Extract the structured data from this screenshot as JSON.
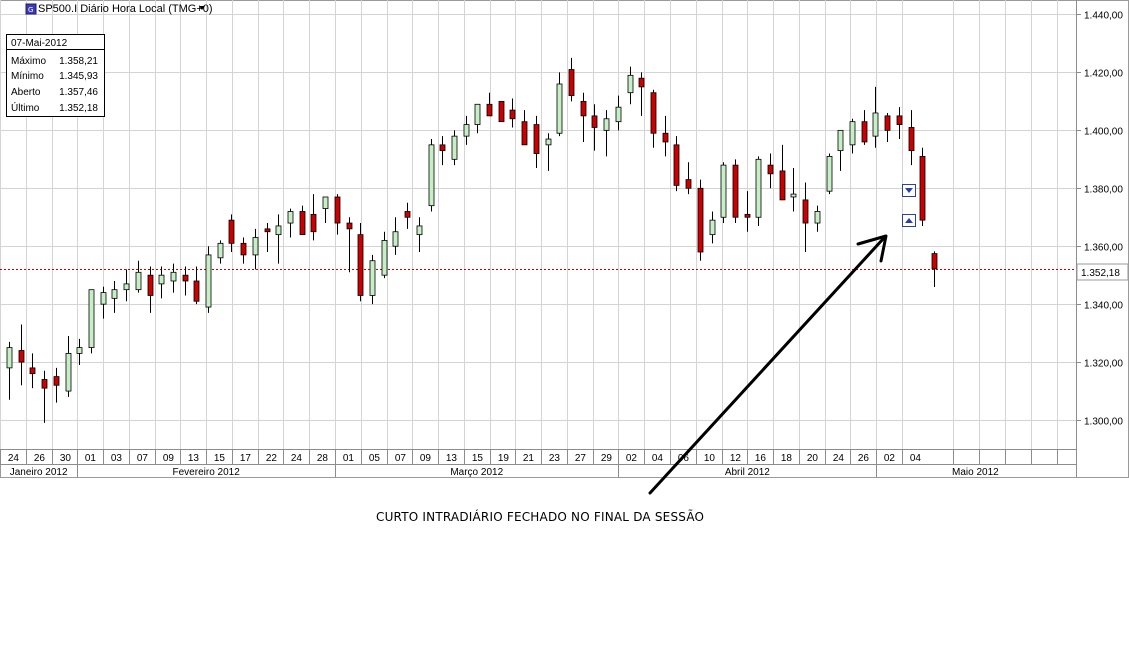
{
  "header": {
    "symbol_icon": "chart-symbol-icon",
    "title": "SP500.I Diário Hora Local (TMG+0)",
    "dropdown_icon": "triangle-down-icon"
  },
  "info_box": {
    "date": "07-Mai-2012",
    "rows": [
      {
        "label": "Máximo",
        "value": "1.358,21"
      },
      {
        "label": "Mínimo",
        "value": "1.345,93"
      },
      {
        "label": "Aberto",
        "value": "1.357,46"
      },
      {
        "label": "Último",
        "value": "1.352,18"
      }
    ]
  },
  "last_price_label": "1.352,18",
  "annotation_text": "CURTO INTRADIÁRIO FECHADO NO FINAL DA SESSÃO",
  "colors": {
    "up_body": "#c6efc6",
    "down_body": "#cc0000",
    "grid": "#d4d4d4",
    "last_line": "#cc0000",
    "marker": "#2a3fa8"
  },
  "chart_data": {
    "type": "candlestick",
    "ylim": [
      1290,
      1445
    ],
    "yticks": [
      {
        "value": 1300,
        "label": "1.300,00"
      },
      {
        "value": 1320,
        "label": "1.320,00"
      },
      {
        "value": 1340,
        "label": "1.340,00"
      },
      {
        "value": 1360,
        "label": "1.360,00"
      },
      {
        "value": 1380,
        "label": "1.380,00"
      },
      {
        "value": 1400,
        "label": "1.400,00"
      },
      {
        "value": 1420,
        "label": "1.420,00"
      },
      {
        "value": 1440,
        "label": "1.440,00"
      }
    ],
    "last_value": 1352.18,
    "day_labels": [
      "24",
      "26",
      "30",
      "01",
      "03",
      "07",
      "09",
      "13",
      "15",
      "17",
      "22",
      "24",
      "28",
      "01",
      "05",
      "07",
      "09",
      "13",
      "15",
      "19",
      "21",
      "23",
      "27",
      "29",
      "02",
      "04",
      "06",
      "10",
      "12",
      "16",
      "18",
      "20",
      "24",
      "26",
      "02",
      "04"
    ],
    "month_labels": [
      "Janeiro 2012",
      "Fevereiro 2012",
      "Março 2012",
      "Abril 2012",
      "Maio 2012"
    ],
    "candles": [
      {
        "o": 1318,
        "h": 1327,
        "l": 1307,
        "c": 1325
      },
      {
        "o": 1324,
        "h": 1333,
        "l": 1312,
        "c": 1320
      },
      {
        "o": 1318,
        "h": 1323,
        "l": 1311,
        "c": 1316
      },
      {
        "o": 1314,
        "h": 1317,
        "l": 1299,
        "c": 1311
      },
      {
        "o": 1315,
        "h": 1318,
        "l": 1306,
        "c": 1312
      },
      {
        "o": 1310,
        "h": 1329,
        "l": 1308,
        "c": 1323
      },
      {
        "o": 1323,
        "h": 1328,
        "l": 1319,
        "c": 1325
      },
      {
        "o": 1325,
        "h": 1345,
        "l": 1323,
        "c": 1345
      },
      {
        "o": 1340,
        "h": 1346,
        "l": 1335,
        "c": 1344
      },
      {
        "o": 1342,
        "h": 1348,
        "l": 1337,
        "c": 1345
      },
      {
        "o": 1345,
        "h": 1352,
        "l": 1341,
        "c": 1347
      },
      {
        "o": 1345,
        "h": 1355,
        "l": 1344,
        "c": 1351
      },
      {
        "o": 1350,
        "h": 1353,
        "l": 1337,
        "c": 1343
      },
      {
        "o": 1347,
        "h": 1353,
        "l": 1342,
        "c": 1350
      },
      {
        "o": 1348,
        "h": 1354,
        "l": 1344,
        "c": 1351
      },
      {
        "o": 1350,
        "h": 1353,
        "l": 1343,
        "c": 1348
      },
      {
        "o": 1348,
        "h": 1353,
        "l": 1340,
        "c": 1341
      },
      {
        "o": 1339,
        "h": 1360,
        "l": 1337,
        "c": 1357
      },
      {
        "o": 1356,
        "h": 1362,
        "l": 1354,
        "c": 1361
      },
      {
        "o": 1369,
        "h": 1371,
        "l": 1358,
        "c": 1361
      },
      {
        "o": 1361,
        "h": 1363,
        "l": 1354,
        "c": 1357
      },
      {
        "o": 1357,
        "h": 1366,
        "l": 1352,
        "c": 1363
      },
      {
        "o": 1366,
        "h": 1368,
        "l": 1358,
        "c": 1365
      },
      {
        "o": 1364,
        "h": 1371,
        "l": 1354,
        "c": 1367
      },
      {
        "o": 1368,
        "h": 1373,
        "l": 1363,
        "c": 1372
      },
      {
        "o": 1372,
        "h": 1374,
        "l": 1365,
        "c": 1364
      },
      {
        "o": 1371,
        "h": 1378,
        "l": 1362,
        "c": 1365
      },
      {
        "o": 1373,
        "h": 1377,
        "l": 1368,
        "c": 1377
      },
      {
        "o": 1377,
        "h": 1378,
        "l": 1364,
        "c": 1368
      },
      {
        "o": 1368,
        "h": 1370,
        "l": 1351,
        "c": 1366
      },
      {
        "o": 1364,
        "h": 1368,
        "l": 1341,
        "c": 1343
      },
      {
        "o": 1343,
        "h": 1357,
        "l": 1340,
        "c": 1355
      },
      {
        "o": 1350,
        "h": 1365,
        "l": 1349,
        "c": 1362
      },
      {
        "o": 1360,
        "h": 1370,
        "l": 1357,
        "c": 1365
      },
      {
        "o": 1372,
        "h": 1375,
        "l": 1366,
        "c": 1370
      },
      {
        "o": 1364,
        "h": 1370,
        "l": 1358,
        "c": 1367
      },
      {
        "o": 1374,
        "h": 1397,
        "l": 1372,
        "c": 1395
      },
      {
        "o": 1395,
        "h": 1398,
        "l": 1388,
        "c": 1393
      },
      {
        "o": 1390,
        "h": 1400,
        "l": 1388,
        "c": 1398
      },
      {
        "o": 1398,
        "h": 1405,
        "l": 1395,
        "c": 1402
      },
      {
        "o": 1402,
        "h": 1409,
        "l": 1399,
        "c": 1409
      },
      {
        "o": 1409,
        "h": 1413,
        "l": 1405,
        "c": 1405
      },
      {
        "o": 1410,
        "h": 1409,
        "l": 1404,
        "c": 1403
      },
      {
        "o": 1407,
        "h": 1411,
        "l": 1401,
        "c": 1404
      },
      {
        "o": 1403,
        "h": 1407,
        "l": 1395,
        "c": 1395
      },
      {
        "o": 1402,
        "h": 1405,
        "l": 1387,
        "c": 1392
      },
      {
        "o": 1395,
        "h": 1399,
        "l": 1386,
        "c": 1397
      },
      {
        "o": 1399,
        "h": 1420,
        "l": 1398,
        "c": 1416
      },
      {
        "o": 1421,
        "h": 1425,
        "l": 1410,
        "c": 1412
      },
      {
        "o": 1410,
        "h": 1413,
        "l": 1396,
        "c": 1405
      },
      {
        "o": 1405,
        "h": 1409,
        "l": 1393,
        "c": 1401
      },
      {
        "o": 1400,
        "h": 1407,
        "l": 1391,
        "c": 1404
      },
      {
        "o": 1403,
        "h": 1412,
        "l": 1400,
        "c": 1408
      },
      {
        "o": 1413,
        "h": 1422,
        "l": 1409,
        "c": 1419
      },
      {
        "o": 1418,
        "h": 1420,
        "l": 1405,
        "c": 1415
      },
      {
        "o": 1413,
        "h": 1414,
        "l": 1394,
        "c": 1399
      },
      {
        "o": 1399,
        "h": 1405,
        "l": 1391,
        "c": 1396
      },
      {
        "o": 1395,
        "h": 1398,
        "l": 1379,
        "c": 1381
      },
      {
        "o": 1383,
        "h": 1389,
        "l": 1378,
        "c": 1380
      },
      {
        "o": 1380,
        "h": 1383,
        "l": 1355,
        "c": 1358
      },
      {
        "o": 1364,
        "h": 1372,
        "l": 1361,
        "c": 1369
      },
      {
        "o": 1370,
        "h": 1389,
        "l": 1368,
        "c": 1388
      },
      {
        "o": 1388,
        "h": 1390,
        "l": 1368,
        "c": 1370
      },
      {
        "o": 1371,
        "h": 1379,
        "l": 1365,
        "c": 1370
      },
      {
        "o": 1370,
        "h": 1391,
        "l": 1367,
        "c": 1390
      },
      {
        "o": 1388,
        "h": 1392,
        "l": 1380,
        "c": 1385
      },
      {
        "o": 1386,
        "h": 1395,
        "l": 1376,
        "c": 1376
      },
      {
        "o": 1377,
        "h": 1387,
        "l": 1372,
        "c": 1378
      },
      {
        "o": 1376,
        "h": 1382,
        "l": 1358,
        "c": 1368
      },
      {
        "o": 1368,
        "h": 1374,
        "l": 1365,
        "c": 1372
      },
      {
        "o": 1379,
        "h": 1392,
        "l": 1378,
        "c": 1391
      },
      {
        "o": 1393,
        "h": 1400,
        "l": 1386,
        "c": 1400
      },
      {
        "o": 1395,
        "h": 1404,
        "l": 1392,
        "c": 1403
      },
      {
        "o": 1403,
        "h": 1407,
        "l": 1395,
        "c": 1396
      },
      {
        "o": 1398,
        "h": 1415,
        "l": 1394,
        "c": 1406
      },
      {
        "o": 1405,
        "h": 1406,
        "l": 1396,
        "c": 1400
      },
      {
        "o": 1405,
        "h": 1408,
        "l": 1397,
        "c": 1402
      },
      {
        "o": 1401,
        "h": 1407,
        "l": 1388,
        "c": 1393
      },
      {
        "o": 1391,
        "h": 1394,
        "l": 1367,
        "c": 1369
      },
      {
        "o": 1357.46,
        "h": 1358.21,
        "l": 1345.93,
        "c": 1352.18
      }
    ]
  }
}
